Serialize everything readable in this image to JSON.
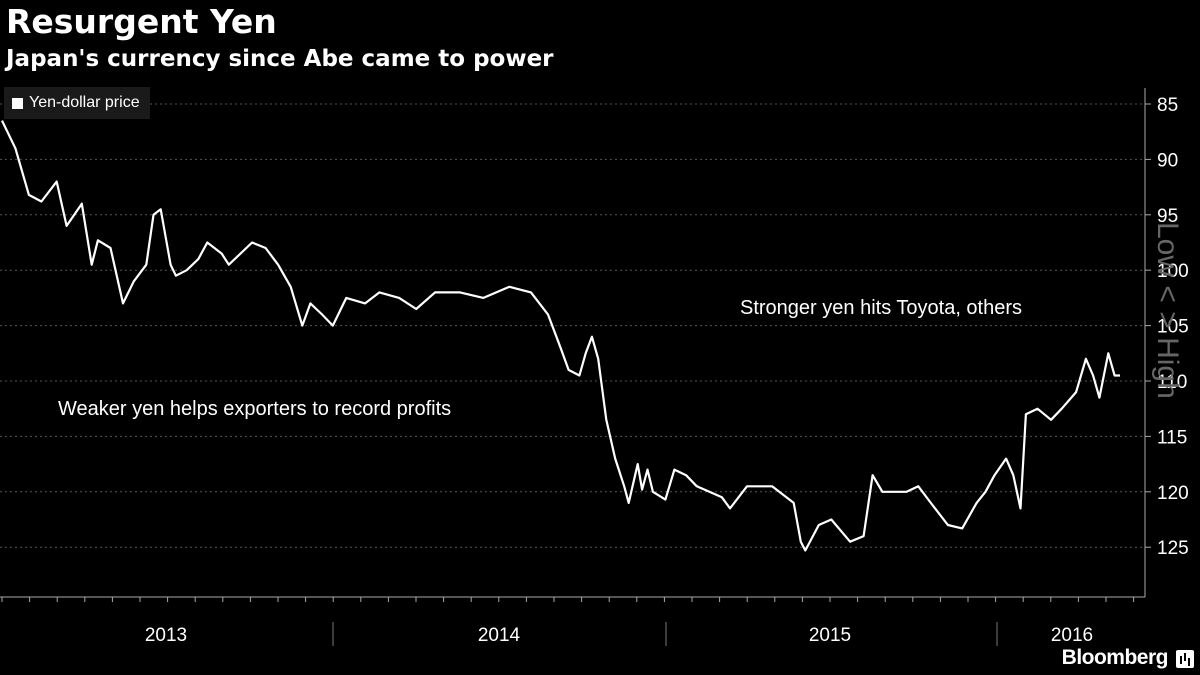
{
  "header": {
    "title": "Resurgent Yen",
    "subtitle": "Japan's currency since Abe came to power"
  },
  "legend": {
    "label": "Yen-dollar price",
    "swatch_color": "#ffffff"
  },
  "brand": {
    "name": "Bloomberg",
    "icon": "bloomberg-logo-icon"
  },
  "chart_data": {
    "type": "line",
    "x_ticks": [
      "2013",
      "2014",
      "2015",
      "2016"
    ],
    "y_ticks": [
      85,
      90,
      95,
      100,
      105,
      110,
      115,
      120,
      125
    ],
    "ylim": [
      85,
      130
    ],
    "y_inverted": true,
    "y_axis_side": "right",
    "y_axis_note": "Low < > High",
    "grid": true,
    "annotations": [
      "Weaker yen helps exporters to record profits",
      "Stronger yen hits Toyota, others"
    ],
    "series": [
      {
        "name": "Yen-dollar price",
        "color": "#ffffff",
        "x": [
          "2012-12-26",
          "2013-01-10",
          "2013-01-25",
          "2013-02-08",
          "2013-02-25",
          "2013-03-08",
          "2013-03-25",
          "2013-04-05",
          "2013-04-12",
          "2013-04-26",
          "2013-05-10",
          "2013-05-22",
          "2013-06-05",
          "2013-06-13",
          "2013-06-21",
          "2013-07-02",
          "2013-07-08",
          "2013-07-20",
          "2013-08-02",
          "2013-08-12",
          "2013-08-28",
          "2013-09-05",
          "2013-09-18",
          "2013-10-01",
          "2013-10-16",
          "2013-10-30",
          "2013-11-13",
          "2013-11-26",
          "2013-12-05",
          "2013-12-18",
          "2013-12-30",
          "2014-01-14",
          "2014-02-04",
          "2014-02-20",
          "2014-03-14",
          "2014-04-02",
          "2014-04-23",
          "2014-05-21",
          "2014-06-16",
          "2014-07-15",
          "2014-08-08",
          "2014-08-27",
          "2014-09-10",
          "2014-09-19",
          "2014-10-01",
          "2014-10-08",
          "2014-10-15",
          "2014-10-22",
          "2014-10-31",
          "2014-11-10",
          "2014-11-20",
          "2014-11-25",
          "2014-12-05",
          "2014-12-10",
          "2014-12-16",
          "2014-12-22",
          "2015-01-05",
          "2015-01-15",
          "2015-01-28",
          "2015-02-09",
          "2015-03-09",
          "2015-03-18",
          "2015-04-06",
          "2015-05-04",
          "2015-05-28",
          "2015-06-05",
          "2015-06-10",
          "2015-06-25",
          "2015-07-09",
          "2015-07-30",
          "2015-08-14",
          "2015-08-24",
          "2015-09-04",
          "2015-10-01",
          "2015-10-14",
          "2015-10-28",
          "2015-11-16",
          "2015-12-02",
          "2015-12-18",
          "2015-12-28",
          "2016-01-07",
          "2016-01-20",
          "2016-01-28",
          "2016-02-05",
          "2016-02-11",
          "2016-02-24",
          "2016-03-10",
          "2016-03-22",
          "2016-04-07",
          "2016-04-18",
          "2016-04-26",
          "2016-05-03",
          "2016-05-13",
          "2016-05-20",
          "2016-05-26"
        ],
        "y": [
          86.5,
          89,
          93.2,
          93.8,
          92,
          96,
          94,
          99.5,
          97.3,
          98,
          103,
          101,
          99.5,
          95,
          94.5,
          99.5,
          100.5,
          100,
          99,
          97.5,
          98.5,
          99.5,
          98.5,
          97.5,
          98,
          99.5,
          101.5,
          105,
          103,
          104,
          105,
          102.5,
          103,
          102,
          102.5,
          103.5,
          102,
          102,
          102.5,
          101.5,
          102,
          104,
          107,
          109,
          109.5,
          107.5,
          106,
          108,
          113.5,
          117,
          119.5,
          121,
          117.5,
          119.8,
          118,
          120,
          120.7,
          118,
          118.5,
          119.5,
          120.5,
          121.5,
          119.5,
          119.5,
          121,
          124.5,
          125.3,
          123,
          122.5,
          124.5,
          124,
          118.5,
          120,
          120,
          119.5,
          121,
          123,
          123.3,
          121,
          120,
          118.5,
          117,
          118.5,
          121.5,
          113,
          112.5,
          113.5,
          112.5,
          111,
          108,
          109.5,
          111.5,
          107.5,
          109.5,
          109.5
        ]
      }
    ]
  }
}
